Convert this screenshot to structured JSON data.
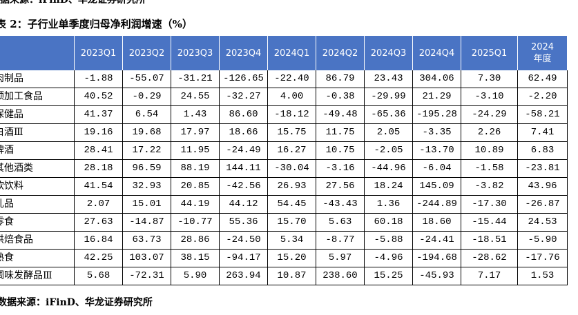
{
  "source_top": "数据来源：iFinD、华龙证券研究所",
  "title": "表 2：子行业单季度归母净利润增速（%）",
  "table": {
    "columns": [
      "2023Q1",
      "2023Q2",
      "2023Q3",
      "2023Q4",
      "2024Q1",
      "2024Q2",
      "2024Q3",
      "2024Q4",
      "2025Q1",
      "2024\n年度"
    ],
    "rows": [
      [
        "肉制品",
        "-1.88",
        "-55.07",
        "-31.21",
        "-126.65",
        "-22.40",
        "86.79",
        "23.43",
        "304.06",
        "7.30",
        "62.49"
      ],
      [
        "预加工食品",
        "40.52",
        "-0.29",
        "24.55",
        "-32.27",
        "4.00",
        "-0.38",
        "-29.99",
        "21.29",
        "-3.10",
        "-2.20"
      ],
      [
        "保健品",
        "41.37",
        "6.54",
        "1.43",
        "86.60",
        "-18.12",
        "-49.48",
        "-65.36",
        "-195.28",
        "-24.29",
        "-58.21"
      ],
      [
        "白酒Ⅲ",
        "19.16",
        "19.68",
        "17.97",
        "18.66",
        "15.75",
        "11.75",
        "2.05",
        "-3.35",
        "2.26",
        "7.41"
      ],
      [
        "啤酒",
        "28.41",
        "17.22",
        "11.95",
        "-24.49",
        "16.27",
        "10.75",
        "-2.05",
        "-13.70",
        "10.89",
        "6.83"
      ],
      [
        "其他酒类",
        "28.18",
        "96.59",
        "88.19",
        "144.11",
        "-30.04",
        "-3.16",
        "-44.96",
        "-6.04",
        "-1.58",
        "-23.81"
      ],
      [
        "软饮料",
        "41.54",
        "32.93",
        "20.85",
        "-42.56",
        "26.93",
        "27.56",
        "18.24",
        "145.09",
        "-3.82",
        "43.96"
      ],
      [
        "乳品",
        "2.07",
        "15.01",
        "44.19",
        "44.12",
        "54.45",
        "-43.43",
        "1.36",
        "-244.89",
        "-17.30",
        "-26.87"
      ],
      [
        "零食",
        "27.63",
        "-14.87",
        "-10.77",
        "55.36",
        "15.70",
        "5.63",
        "60.18",
        "18.60",
        "-15.44",
        "24.53"
      ],
      [
        "烘焙食品",
        "16.84",
        "63.73",
        "28.86",
        "-24.50",
        "5.34",
        "-8.77",
        "-5.88",
        "-24.41",
        "-18.51",
        "-5.90"
      ],
      [
        "熟食",
        "42.25",
        "103.07",
        "38.15",
        "-94.17",
        "15.20",
        "5.97",
        "-4.96",
        "-194.68",
        "-28.62",
        "-17.76"
      ],
      [
        "调味发酵品Ⅲ",
        "5.68",
        "-72.31",
        "5.90",
        "263.94",
        "10.87",
        "238.60",
        "15.25",
        "-45.93",
        "7.17",
        "1.53"
      ]
    ]
  },
  "source": "数据来源：iFinD、华龙证券研究所"
}
